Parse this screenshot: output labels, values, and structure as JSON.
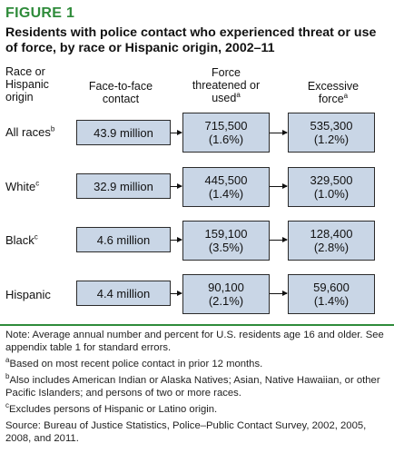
{
  "figure_label": "FIGURE 1",
  "title": "Residents with police contact who experienced threat or use of force, by race or Hispanic origin, 2002–11",
  "columns": {
    "race": {
      "line1": "Race or",
      "line2": "Hispanic",
      "line3": "origin"
    },
    "contact": {
      "line1": "Face-to-face",
      "line2": "contact"
    },
    "force": {
      "line1": "Force",
      "line2": "threatened or",
      "line3": "used",
      "note": "a"
    },
    "excessive": {
      "line1": "Excessive",
      "line2": "force",
      "note": "a"
    }
  },
  "rows": [
    {
      "label": "All races",
      "note": "b",
      "contact": "43.9 million",
      "force_n": "715,500",
      "force_pct": "(1.6%)",
      "excessive_n": "535,300",
      "excessive_pct": "(1.2%)"
    },
    {
      "label": "White",
      "note": "c",
      "contact": "32.9 million",
      "force_n": "445,500",
      "force_pct": "(1.4%)",
      "excessive_n": "329,500",
      "excessive_pct": "(1.0%)"
    },
    {
      "label": "Black",
      "note": "c",
      "contact": "4.6 million",
      "force_n": "159,100",
      "force_pct": "(3.5%)",
      "excessive_n": "128,400",
      "excessive_pct": "(2.8%)"
    },
    {
      "label": "Hispanic",
      "note": "",
      "contact": "4.4 million",
      "force_n": "90,100",
      "force_pct": "(2.1%)",
      "excessive_n": "59,600",
      "excessive_pct": "(1.4%)"
    }
  ],
  "notes": {
    "main": "Note: Average annual number and percent for U.S. residents age 16 and older. See appendix table 1 for standard errors.",
    "a_mark": "a",
    "a": "Based on most recent police contact in prior 12 months.",
    "b_mark": "b",
    "b": "Also includes American Indian or Alaska Natives; Asian, Native Hawaiian, or other Pacific Islanders; and persons of two or more races.",
    "c_mark": "c",
    "c": "Excludes persons of Hispanic or Latino origin.",
    "source": "Source: Bureau of Justice Statistics, Police–Public Contact Survey, 2002, 2005, 2008, and 2011."
  },
  "colors": {
    "accent": "#2e8b3a",
    "box_fill": "#c9d6e6"
  }
}
